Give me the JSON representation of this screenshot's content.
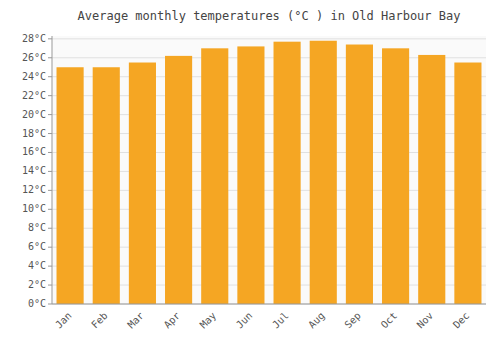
{
  "chart_data": {
    "type": "bar",
    "title": "Average monthly temperatures (°C ) in Old Harbour Bay",
    "categories": [
      "Jan",
      "Feb",
      "Mar",
      "Apr",
      "May",
      "Jun",
      "Jul",
      "Aug",
      "Sep",
      "Oct",
      "Nov",
      "Dec"
    ],
    "values": [
      25.0,
      25.0,
      25.5,
      26.2,
      27.0,
      27.2,
      27.7,
      27.8,
      27.4,
      27.0,
      26.3,
      25.5
    ],
    "color": "#F5A623",
    "ylim": [
      0,
      28.3
    ],
    "yticks": [
      {
        "value": 0,
        "label": "0°C"
      },
      {
        "value": 2,
        "label": "2°C"
      },
      {
        "value": 4,
        "label": "4°C"
      },
      {
        "value": 6,
        "label": "6°C"
      },
      {
        "value": 8,
        "label": "8°C"
      },
      {
        "value": 10,
        "label": "10°C"
      },
      {
        "value": 12,
        "label": "12°C"
      },
      {
        "value": 14,
        "label": "14°C"
      },
      {
        "value": 16,
        "label": "16°C"
      },
      {
        "value": 18,
        "label": "18°C"
      },
      {
        "value": 20,
        "label": "20°C"
      },
      {
        "value": 22,
        "label": "22°C"
      },
      {
        "value": 24,
        "label": "24°C"
      },
      {
        "value": 26,
        "label": "26°C"
      },
      {
        "value": 28,
        "label": "28°C"
      }
    ],
    "grid": true
  }
}
